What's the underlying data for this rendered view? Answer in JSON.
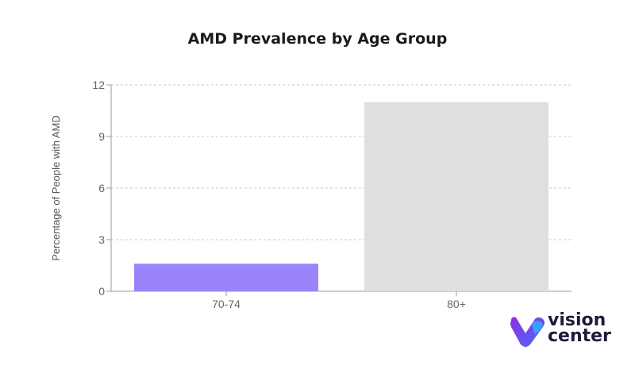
{
  "chart_data": {
    "type": "bar",
    "title": "AMD Prevalence by Age Group",
    "xlabel": "",
    "ylabel": "Percentage of People with AMD",
    "categories": [
      "70-74",
      "80+"
    ],
    "values": [
      1.6,
      11.0
    ],
    "colors": [
      "#9b84fb",
      "#e0dfde"
    ],
    "ylim": [
      0,
      12
    ],
    "yticks": [
      0,
      3,
      6,
      9,
      12
    ],
    "grid": true,
    "legend": "none"
  },
  "logo": {
    "line1": "vision",
    "line2": "center",
    "colors": {
      "purple": "#7b3fe4",
      "blue": "#3aa0ff",
      "text": "#1b1b3a"
    }
  }
}
